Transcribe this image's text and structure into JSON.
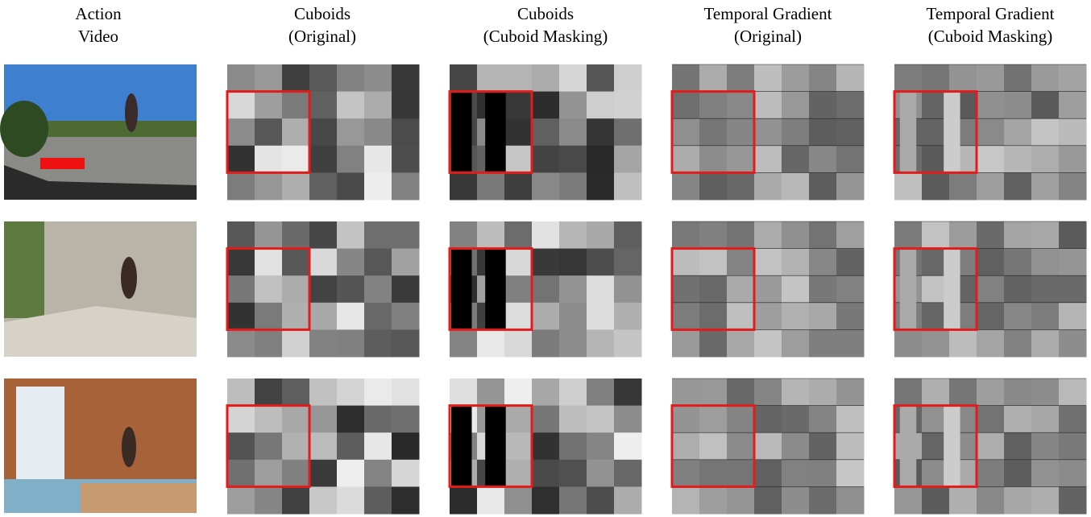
{
  "columns": [
    {
      "lines": [
        "Action",
        "Video"
      ]
    },
    {
      "lines": [
        "Cuboids",
        "(Original)"
      ]
    },
    {
      "lines": [
        "Cuboids",
        "(Cuboid Masking)"
      ]
    },
    {
      "lines": [
        "Temporal Gradient",
        "(Original)"
      ]
    },
    {
      "lines": [
        "Temporal Gradient",
        "(Cuboid Masking)"
      ]
    }
  ]
}
